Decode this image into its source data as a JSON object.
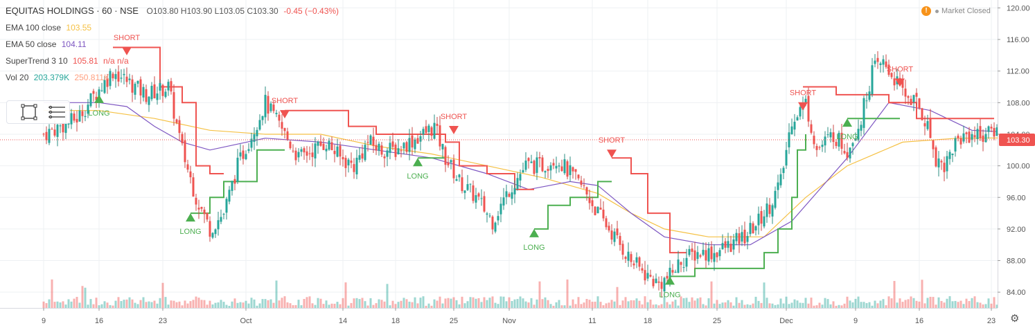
{
  "header": {
    "symbol": "EQUITAS HOLDINGS · 60 · NSE",
    "ohlc": "O103.80 H103.90 L103.05 C103.30",
    "change": "-0.45 (−0.43%)"
  },
  "legend": [
    {
      "label": "EMA 100 close",
      "value1": "103.55",
      "value2": "",
      "color1": "#f5c144",
      "color2": ""
    },
    {
      "label": "EMA 50 close",
      "value1": "104.11",
      "value2": "",
      "color1": "#7e57c2",
      "color2": ""
    },
    {
      "label": "SuperTrend 3 10",
      "value1": "105.81",
      "value2": "n/a n/a",
      "color1": "#ef5350",
      "color2": "#ef5350"
    },
    {
      "label": "Vol 20",
      "value1": "203.379K",
      "value2": "250.811K",
      "color1": "#26a69a",
      "color2": "#ff9f7f"
    }
  ],
  "market_status": "Market Closed",
  "colors": {
    "up": "#26a69a",
    "down": "#ef5350",
    "ema100": "#f5c144",
    "ema50": "#7e57c2",
    "st_up": "#4caf50",
    "st_down": "#ef5350",
    "last_price": "#ef5350"
  },
  "chart_data": {
    "type": "candlestick",
    "price_axis": {
      "min": 82,
      "max": 121,
      "ticks": [
        "84.00",
        "88.00",
        "92.00",
        "96.00",
        "100.00",
        "104.00",
        "108.00",
        "112.00",
        "116.00",
        "120.00"
      ]
    },
    "time_axis_labels": [
      "9",
      "16",
      "23",
      "Oct",
      "14",
      "18",
      "25",
      "Nov",
      "11",
      "18",
      "25",
      "Dec",
      "9",
      "16",
      "23"
    ],
    "last_price": "103.30",
    "close_path": [
      [
        0,
        104
      ],
      [
        12,
        106
      ],
      [
        25,
        112
      ],
      [
        37,
        109
      ],
      [
        45,
        110
      ],
      [
        50,
        102
      ],
      [
        55,
        96
      ],
      [
        60,
        92
      ],
      [
        65,
        94
      ],
      [
        70,
        100
      ],
      [
        75,
        104
      ],
      [
        80,
        108
      ],
      [
        87,
        104
      ],
      [
        92,
        101
      ],
      [
        97,
        102
      ],
      [
        102,
        103
      ],
      [
        107,
        101
      ],
      [
        112,
        100
      ],
      [
        117,
        103
      ],
      [
        122,
        102
      ],
      [
        127,
        102
      ],
      [
        132,
        103
      ],
      [
        137,
        104
      ],
      [
        141,
        105
      ],
      [
        145,
        101
      ],
      [
        150,
        98
      ],
      [
        156,
        96
      ],
      [
        162,
        93
      ],
      [
        168,
        97
      ],
      [
        174,
        100
      ],
      [
        180,
        100
      ],
      [
        185,
        101
      ],
      [
        190,
        99
      ],
      [
        195,
        97
      ],
      [
        200,
        94
      ],
      [
        206,
        91
      ],
      [
        212,
        88
      ],
      [
        218,
        86
      ],
      [
        222,
        85
      ],
      [
        226,
        86
      ],
      [
        230,
        88
      ],
      [
        236,
        89
      ],
      [
        242,
        89
      ],
      [
        248,
        90
      ],
      [
        253,
        91
      ],
      [
        258,
        93
      ],
      [
        262,
        95
      ],
      [
        266,
        98
      ],
      [
        270,
        106
      ],
      [
        275,
        108
      ],
      [
        279,
        102
      ],
      [
        285,
        104
      ],
      [
        290,
        102
      ],
      [
        295,
        106
      ],
      [
        299,
        112
      ],
      [
        303,
        113
      ],
      [
        307,
        111
      ],
      [
        311,
        109
      ],
      [
        315,
        108
      ],
      [
        319,
        105
      ],
      [
        322,
        101
      ],
      [
        325,
        100
      ],
      [
        329,
        103
      ],
      [
        333,
        104
      ],
      [
        337,
        104
      ],
      [
        341,
        104
      ],
      [
        345,
        105
      ],
      [
        349,
        104
      ],
      [
        353,
        104
      ],
      [
        357,
        103.3
      ]
    ],
    "ema100": [
      [
        0,
        107
      ],
      [
        20,
        107
      ],
      [
        40,
        106
      ],
      [
        60,
        104.5
      ],
      [
        80,
        104
      ],
      [
        100,
        104
      ],
      [
        120,
        102.5
      ],
      [
        140,
        101.5
      ],
      [
        160,
        100
      ],
      [
        180,
        98.5
      ],
      [
        200,
        96.5
      ],
      [
        212,
        94
      ],
      [
        224,
        92
      ],
      [
        240,
        91
      ],
      [
        260,
        91
      ],
      [
        275,
        96
      ],
      [
        290,
        100
      ],
      [
        310,
        103
      ],
      [
        330,
        103.5
      ],
      [
        357,
        103.55
      ]
    ],
    "ema50": [
      [
        0,
        108
      ],
      [
        20,
        108
      ],
      [
        30,
        107.5
      ],
      [
        40,
        105
      ],
      [
        50,
        103
      ],
      [
        60,
        102
      ],
      [
        80,
        103.5
      ],
      [
        100,
        103
      ],
      [
        120,
        102
      ],
      [
        140,
        101
      ],
      [
        160,
        99
      ],
      [
        175,
        97
      ],
      [
        190,
        98
      ],
      [
        200,
        97.5
      ],
      [
        212,
        94
      ],
      [
        224,
        91
      ],
      [
        240,
        90
      ],
      [
        255,
        90
      ],
      [
        270,
        93
      ],
      [
        290,
        101
      ],
      [
        305,
        108
      ],
      [
        320,
        107
      ],
      [
        335,
        104.5
      ],
      [
        357,
        104.11
      ]
    ],
    "supertrend": [
      {
        "dir": "down",
        "pts": [
          [
            25,
            115
          ],
          [
            35,
            115
          ],
          [
            42,
            110
          ],
          [
            50,
            108
          ],
          [
            55,
            100
          ],
          [
            60,
            99
          ],
          [
            65,
            99
          ]
        ]
      },
      {
        "dir": "up",
        "pts": [
          [
            53,
            94
          ],
          [
            60,
            96
          ],
          [
            65,
            98
          ],
          [
            72,
            98
          ],
          [
            77,
            102
          ],
          [
            85,
            102
          ],
          [
            87,
            102
          ]
        ]
      },
      {
        "dir": "down",
        "pts": [
          [
            87,
            107
          ],
          [
            100,
            107
          ],
          [
            110,
            105
          ],
          [
            120,
            104
          ],
          [
            137,
            104
          ],
          [
            145,
            103
          ],
          [
            150,
            100
          ],
          [
            160,
            99
          ],
          [
            170,
            97
          ],
          [
            177,
            97
          ]
        ]
      },
      {
        "dir": "up",
        "pts": [
          [
            135,
            101
          ],
          [
            145,
            101
          ]
        ]
      },
      {
        "dir": "up",
        "pts": [
          [
            177,
            92
          ],
          [
            182,
            95
          ],
          [
            190,
            96
          ],
          [
            200,
            98
          ],
          [
            205,
            98
          ]
        ]
      },
      {
        "dir": "down",
        "pts": [
          [
            205,
            101
          ],
          [
            212,
            99
          ],
          [
            218,
            94
          ],
          [
            226,
            89
          ],
          [
            232,
            89
          ]
        ]
      },
      {
        "dir": "up",
        "pts": [
          [
            226,
            86
          ],
          [
            235,
            87
          ],
          [
            250,
            87
          ],
          [
            260,
            89
          ],
          [
            265,
            92
          ],
          [
            270,
            96
          ],
          [
            272,
            102
          ],
          [
            275,
            104
          ]
        ]
      },
      {
        "dir": "down",
        "pts": [
          [
            274,
            110
          ],
          [
            282,
            110
          ],
          [
            286,
            109
          ],
          [
            297,
            109
          ],
          [
            305,
            108
          ],
          [
            309,
            108
          ]
        ]
      },
      {
        "dir": "up",
        "pts": [
          [
            290,
            106
          ],
          [
            300,
            106
          ],
          [
            309,
            106
          ]
        ]
      },
      {
        "dir": "down",
        "pts": [
          [
            305,
            108
          ],
          [
            315,
            106
          ],
          [
            330,
            106
          ],
          [
            343,
            106
          ]
        ]
      }
    ],
    "signals": [
      {
        "type": "SHORT",
        "t": 30,
        "price": 114
      },
      {
        "type": "LONG",
        "t": 20,
        "price": 109
      },
      {
        "type": "LONG",
        "t": 53,
        "price": 94
      },
      {
        "type": "SHORT",
        "t": 87,
        "price": 106
      },
      {
        "type": "LONG",
        "t": 135,
        "price": 101
      },
      {
        "type": "SHORT",
        "t": 148,
        "price": 104
      },
      {
        "type": "LONG",
        "t": 177,
        "price": 92
      },
      {
        "type": "SHORT",
        "t": 205,
        "price": 101
      },
      {
        "type": "LONG",
        "t": 226,
        "price": 86
      },
      {
        "type": "SHORT",
        "t": 274,
        "price": 107
      },
      {
        "type": "LONG",
        "t": 290,
        "price": 106
      },
      {
        "type": "SHORT",
        "t": 309,
        "price": 110
      }
    ]
  }
}
